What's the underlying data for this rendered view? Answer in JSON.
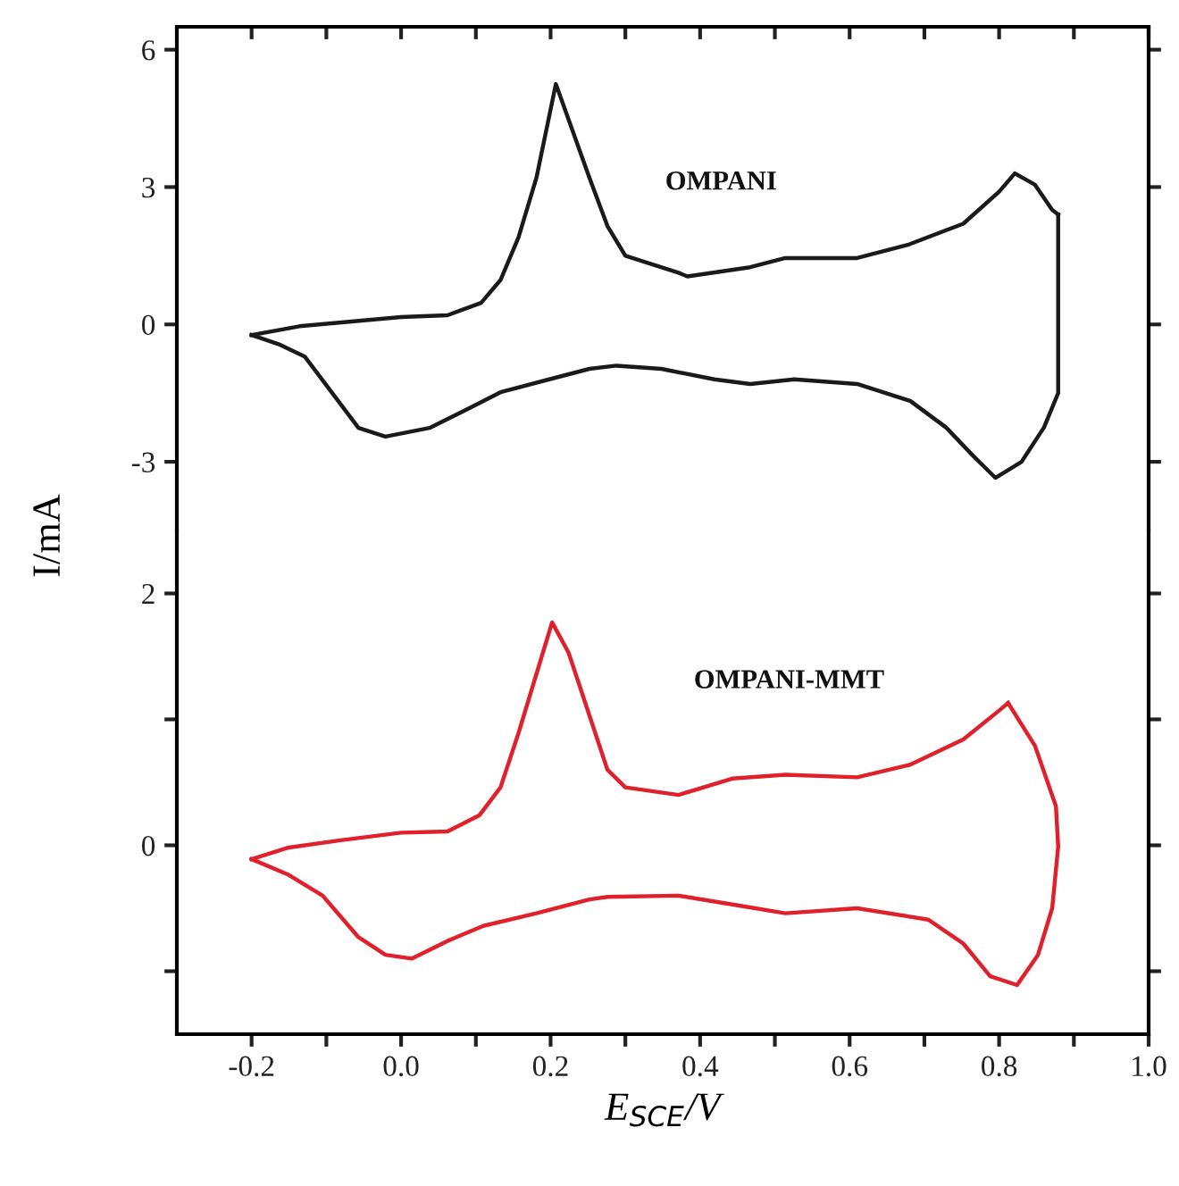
{
  "chart_data": [
    {
      "type": "line",
      "ylabel": "I/mA",
      "tick_labels": "y",
      "xlim": [
        -0.3,
        1.0
      ],
      "ylim": [
        -4.5,
        6.5
      ],
      "xticks": [
        {
          "value": -0.2,
          "label": null
        },
        {
          "value": -0.1,
          "label": null
        },
        {
          "value": 0.0,
          "label": null
        },
        {
          "value": 0.1,
          "label": null
        },
        {
          "value": 0.2,
          "label": null
        },
        {
          "value": 0.3,
          "label": null
        },
        {
          "value": 0.4,
          "label": null
        },
        {
          "value": 0.5,
          "label": null
        },
        {
          "value": 0.6,
          "label": null
        },
        {
          "value": 0.7,
          "label": null
        },
        {
          "value": 0.8,
          "label": null
        },
        {
          "value": 0.9,
          "label": null
        },
        {
          "value": 1.0,
          "label": null
        }
      ],
      "yticks": [
        6,
        3,
        0,
        -3
      ],
      "grid": false,
      "legend": false,
      "marker": "none",
      "line_style": "solid",
      "series": [
        {
          "name": "OMPANI",
          "color": "#1a1a1a",
          "x": [
            -0.2,
            -0.136,
            0.0,
            0.062,
            0.107,
            0.133,
            0.157,
            0.181,
            0.207,
            0.252,
            0.276,
            0.3,
            0.371,
            0.383,
            0.467,
            0.514,
            0.61,
            0.68,
            0.752,
            0.8,
            0.821,
            0.848,
            0.871,
            0.879
          ],
          "values": [
            -0.23,
            -0.04,
            0.16,
            0.2,
            0.47,
            0.97,
            1.9,
            3.2,
            5.25,
            3.2,
            2.15,
            1.5,
            1.13,
            1.05,
            1.25,
            1.45,
            1.45,
            1.75,
            2.2,
            2.9,
            3.3,
            3.05,
            2.5,
            2.4
          ]
        },
        {
          "color": "#1a1a1a",
          "x": [
            0.879,
            0.879,
            0.86,
            0.83,
            0.795,
            0.764,
            0.729,
            0.681,
            0.61,
            0.526,
            0.467,
            0.419,
            0.348,
            0.288,
            0.252,
            0.205,
            0.133,
            0.086,
            0.038,
            -0.021,
            -0.057,
            -0.093,
            -0.129,
            -0.164,
            -0.2
          ],
          "values": [
            2.4,
            -1.5,
            -2.25,
            -3.0,
            -3.35,
            -2.85,
            -2.25,
            -1.67,
            -1.3,
            -1.2,
            -1.3,
            -1.2,
            -0.97,
            -0.9,
            -0.97,
            -1.17,
            -1.48,
            -1.87,
            -2.26,
            -2.45,
            -2.26,
            -1.48,
            -0.7,
            -0.43,
            -0.23
          ]
        }
      ]
    },
    {
      "type": "line",
      "xlabel": "E$_{SCE}$/V",
      "xlim": [
        -0.3,
        1.0
      ],
      "ylim": [
        -1.5,
        2.5
      ],
      "xticks": [
        -0.2,
        {
          "value": -0.1,
          "label": null
        },
        {
          "value": 0,
          "label": "0.0"
        },
        {
          "value": 0.1,
          "label": null
        },
        0.2,
        {
          "value": 0.3,
          "label": null
        },
        0.4,
        {
          "value": 0.5,
          "label": null
        },
        0.6,
        {
          "value": 0.7,
          "label": null
        },
        0.8,
        {
          "value": 0.9,
          "label": null
        },
        {
          "value": 1,
          "label": "1.0"
        }
      ],
      "yticks": [
        2,
        {
          "value": 1,
          "label": null
        },
        0,
        {
          "value": -1,
          "label": null
        }
      ],
      "grid": false,
      "legend": false,
      "marker": "none",
      "line_style": "solid",
      "series": [
        {
          "name": "OMPANI-MMT",
          "color": "#e0202a",
          "x": [
            -0.2,
            -0.152,
            -0.081,
            0.0,
            0.062,
            0.105,
            0.133,
            0.157,
            0.181,
            0.202,
            0.224,
            0.252,
            0.276,
            0.3,
            0.371,
            0.443,
            0.514,
            0.61,
            0.681,
            0.752,
            0.8,
            0.812
          ],
          "values": [
            -0.11,
            -0.02,
            0.04,
            0.1,
            0.11,
            0.24,
            0.46,
            0.89,
            1.36,
            1.77,
            1.53,
            1.03,
            0.6,
            0.46,
            0.4,
            0.53,
            0.56,
            0.54,
            0.64,
            0.84,
            1.07,
            1.13
          ]
        },
        {
          "color": "#e0202a",
          "x": [
            0.812,
            0.848,
            0.876,
            0.879,
            0.871,
            0.852,
            0.824,
            0.788,
            0.752,
            0.705,
            0.61,
            0.514,
            0.443,
            0.371,
            0.276,
            0.252,
            0.181,
            0.11,
            0.062,
            0.014,
            -0.021,
            -0.057,
            -0.105,
            -0.152,
            -0.2
          ],
          "values": [
            1.13,
            0.79,
            0.31,
            -0.01,
            -0.5,
            -0.87,
            -1.11,
            -1.04,
            -0.78,
            -0.59,
            -0.5,
            -0.54,
            -0.47,
            -0.4,
            -0.41,
            -0.43,
            -0.54,
            -0.64,
            -0.76,
            -0.9,
            -0.87,
            -0.73,
            -0.4,
            -0.23,
            -0.11
          ]
        }
      ]
    }
  ]
}
